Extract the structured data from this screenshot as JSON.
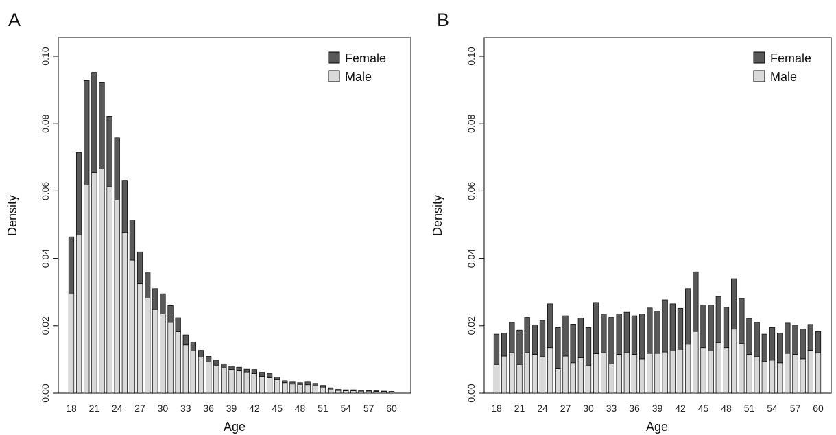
{
  "chart_data": [
    {
      "panel": "A",
      "type": "bar",
      "stacked": true,
      "xlabel": "Age",
      "ylabel": "Density",
      "ylim": [
        0,
        0.1
      ],
      "yticks": [
        "0.00",
        "0.02",
        "0.04",
        "0.06",
        "0.08",
        "0.10"
      ],
      "xtick_labels": [
        "18",
        "21",
        "24",
        "27",
        "30",
        "33",
        "36",
        "39",
        "42",
        "45",
        "48",
        "51",
        "54",
        "57",
        "60"
      ],
      "categories": [
        "18",
        "19",
        "20",
        "21",
        "22",
        "23",
        "24",
        "25",
        "26",
        "27",
        "28",
        "29",
        "30",
        "31",
        "32",
        "33",
        "34",
        "35",
        "36",
        "37",
        "38",
        "39",
        "40",
        "41",
        "42",
        "43",
        "44",
        "45",
        "46",
        "47",
        "48",
        "49",
        "50",
        "51",
        "52",
        "53",
        "54",
        "55",
        "56",
        "57",
        "58",
        "59",
        "60"
      ],
      "legend": {
        "position": "top-right",
        "entries": [
          "Female",
          "Male"
        ]
      },
      "series": [
        {
          "name": "Male",
          "color": "#d9d9d9",
          "values": [
            0.0297,
            0.047,
            0.0618,
            0.0655,
            0.0665,
            0.0613,
            0.0573,
            0.0478,
            0.0395,
            0.0325,
            0.0282,
            0.0248,
            0.0235,
            0.021,
            0.0182,
            0.0143,
            0.0125,
            0.0107,
            0.0093,
            0.0083,
            0.0075,
            0.007,
            0.0068,
            0.0063,
            0.0058,
            0.005,
            0.0046,
            0.004,
            0.0031,
            0.0027,
            0.0026,
            0.0025,
            0.0022,
            0.0018,
            0.0012,
            0.0008,
            0.0007,
            0.0007,
            0.0006,
            0.0006,
            0.0005,
            0.0004,
            0.0004
          ]
        },
        {
          "name": "Female",
          "color": "#595959",
          "values": [
            0.0167,
            0.0244,
            0.031,
            0.0297,
            0.0257,
            0.0209,
            0.0185,
            0.0152,
            0.0119,
            0.0094,
            0.0075,
            0.0062,
            0.006,
            0.005,
            0.0042,
            0.003,
            0.0027,
            0.002,
            0.0016,
            0.0015,
            0.0012,
            0.001,
            0.0009,
            0.0008,
            0.0012,
            0.0012,
            0.0012,
            0.0008,
            0.0006,
            0.0006,
            0.0005,
            0.0008,
            0.0007,
            0.0005,
            0.0004,
            0.0003,
            0.0003,
            0.0003,
            0.0003,
            0.0002,
            0.0002,
            0.0002,
            0.0001
          ]
        }
      ]
    },
    {
      "panel": "B",
      "type": "bar",
      "stacked": true,
      "xlabel": "Age",
      "ylabel": "Density",
      "ylim": [
        0,
        0.1
      ],
      "yticks": [
        "0.00",
        "0.02",
        "0.04",
        "0.06",
        "0.08",
        "0.10"
      ],
      "xtick_labels": [
        "18",
        "21",
        "24",
        "27",
        "30",
        "33",
        "36",
        "39",
        "42",
        "45",
        "48",
        "51",
        "54",
        "57",
        "60"
      ],
      "categories": [
        "18",
        "19",
        "20",
        "21",
        "22",
        "23",
        "24",
        "25",
        "26",
        "27",
        "28",
        "29",
        "30",
        "31",
        "32",
        "33",
        "34",
        "35",
        "36",
        "37",
        "38",
        "39",
        "40",
        "41",
        "42",
        "43",
        "44",
        "45",
        "46",
        "47",
        "48",
        "49",
        "50",
        "51",
        "52",
        "53",
        "54",
        "55",
        "56",
        "57",
        "58",
        "59",
        "60"
      ],
      "legend": {
        "position": "top-right",
        "entries": [
          "Female",
          "Male"
        ]
      },
      "series": [
        {
          "name": "Male",
          "color": "#d9d9d9",
          "values": [
            0.0085,
            0.011,
            0.012,
            0.0085,
            0.012,
            0.0115,
            0.0108,
            0.0135,
            0.0072,
            0.011,
            0.009,
            0.0105,
            0.0083,
            0.0117,
            0.012,
            0.0087,
            0.0115,
            0.012,
            0.0115,
            0.0102,
            0.0118,
            0.0118,
            0.0122,
            0.0125,
            0.013,
            0.0145,
            0.0183,
            0.0135,
            0.0125,
            0.015,
            0.0135,
            0.019,
            0.0148,
            0.0115,
            0.0108,
            0.0095,
            0.0098,
            0.009,
            0.0118,
            0.0115,
            0.0102,
            0.0127,
            0.012
          ]
        },
        {
          "name": "Female",
          "color": "#595959",
          "values": [
            0.009,
            0.0068,
            0.009,
            0.0102,
            0.0105,
            0.0088,
            0.0108,
            0.013,
            0.0123,
            0.012,
            0.0115,
            0.0118,
            0.0112,
            0.0152,
            0.0115,
            0.0138,
            0.012,
            0.012,
            0.0115,
            0.0133,
            0.0135,
            0.0125,
            0.0155,
            0.014,
            0.0122,
            0.0165,
            0.0177,
            0.0127,
            0.0137,
            0.0137,
            0.012,
            0.015,
            0.0133,
            0.0107,
            0.0102,
            0.008,
            0.0097,
            0.0088,
            0.009,
            0.0087,
            0.0088,
            0.0077,
            0.0063
          ]
        }
      ]
    }
  ]
}
